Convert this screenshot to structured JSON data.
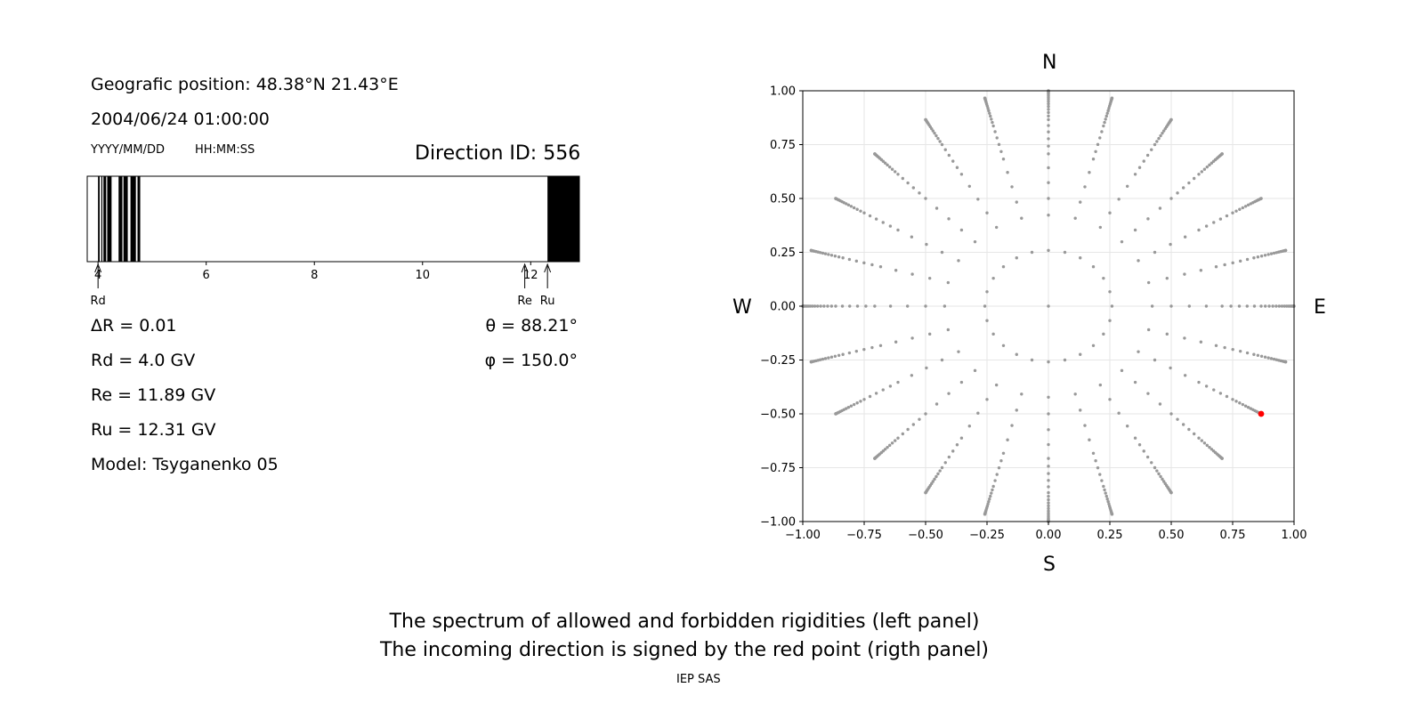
{
  "left_panel": {
    "geo_position": "Geografic position: 48.38°N 21.43°E",
    "datetime": "2004/06/24 01:00:00",
    "date_format": "YYYY/MM/DD",
    "time_format": "HH:MM:SS",
    "direction_id": "Direction ID: 556",
    "delta_r": "ΔR = 0.01",
    "theta": "θ = 88.21°",
    "phi": "φ = 150.0°",
    "rd": "Rd = 4.0 GV",
    "re": "Re = 11.89 GV",
    "ru": "Ru = 12.31 GV",
    "model": "Model: Tsyganenko 05",
    "markers": {
      "rd": "Rd",
      "re": "Re",
      "ru": "Ru"
    }
  },
  "footer": {
    "line1": "The spectrum of allowed and forbidden rigidities (left panel)",
    "line2": "The incoming direction is signed by the red point (rigth panel)",
    "credit": "IEP SAS"
  },
  "compass": {
    "north": "N",
    "south": "S",
    "west": "W",
    "east": "E"
  },
  "chart_data": [
    {
      "type": "bar",
      "description_type": "rigidity spectrum strip",
      "xlim": [
        3.8,
        12.9
      ],
      "xticks": [
        4,
        6,
        8,
        10,
        12
      ],
      "forbidden_bands": [
        [
          4.0,
          4.03
        ],
        [
          4.06,
          4.08
        ],
        [
          4.1,
          4.15
        ],
        [
          4.17,
          4.25
        ],
        [
          4.38,
          4.45
        ],
        [
          4.47,
          4.55
        ],
        [
          4.6,
          4.7
        ],
        [
          4.73,
          4.78
        ],
        [
          12.31,
          12.9
        ]
      ],
      "markers": {
        "Rd": 4.0,
        "Re": 11.89,
        "Ru": 12.31
      },
      "colors": {
        "forbidden": "#000000",
        "allowed": "#ffffff"
      }
    },
    {
      "type": "scatter",
      "xlim": [
        -1.0,
        1.0
      ],
      "ylim": [
        -1.0,
        1.0
      ],
      "xticks": [
        "−1.00",
        "−0.75",
        "−0.50",
        "−0.25",
        "0.00",
        "0.25",
        "0.50",
        "0.75",
        "1.00"
      ],
      "yticks": [
        "1.00",
        "0.75",
        "0.50",
        "0.25",
        "0.00",
        "−0.25",
        "−0.50",
        "−0.75",
        "−1.00"
      ],
      "tick_values": [
        -1.0,
        -0.75,
        -0.5,
        -0.25,
        0.0,
        0.25,
        0.5,
        0.75,
        1.0
      ],
      "grid": true,
      "grid_directions": {
        "azimuth_step_deg": 15,
        "zenith_angles_deg": [
          0,
          15,
          25,
          30,
          35,
          40,
          45,
          48,
          51,
          54,
          57,
          60,
          62,
          64,
          66,
          68,
          70,
          72,
          74,
          76,
          78,
          80,
          82,
          84,
          86,
          88,
          89,
          90
        ]
      },
      "highlight": {
        "theta_deg": 88.21,
        "phi_deg": 150.0,
        "x": 0.866,
        "y": -0.5
      },
      "colors": {
        "points": "#999999",
        "highlight": "#ff0000",
        "grid": "#e6e6e6"
      }
    }
  ]
}
